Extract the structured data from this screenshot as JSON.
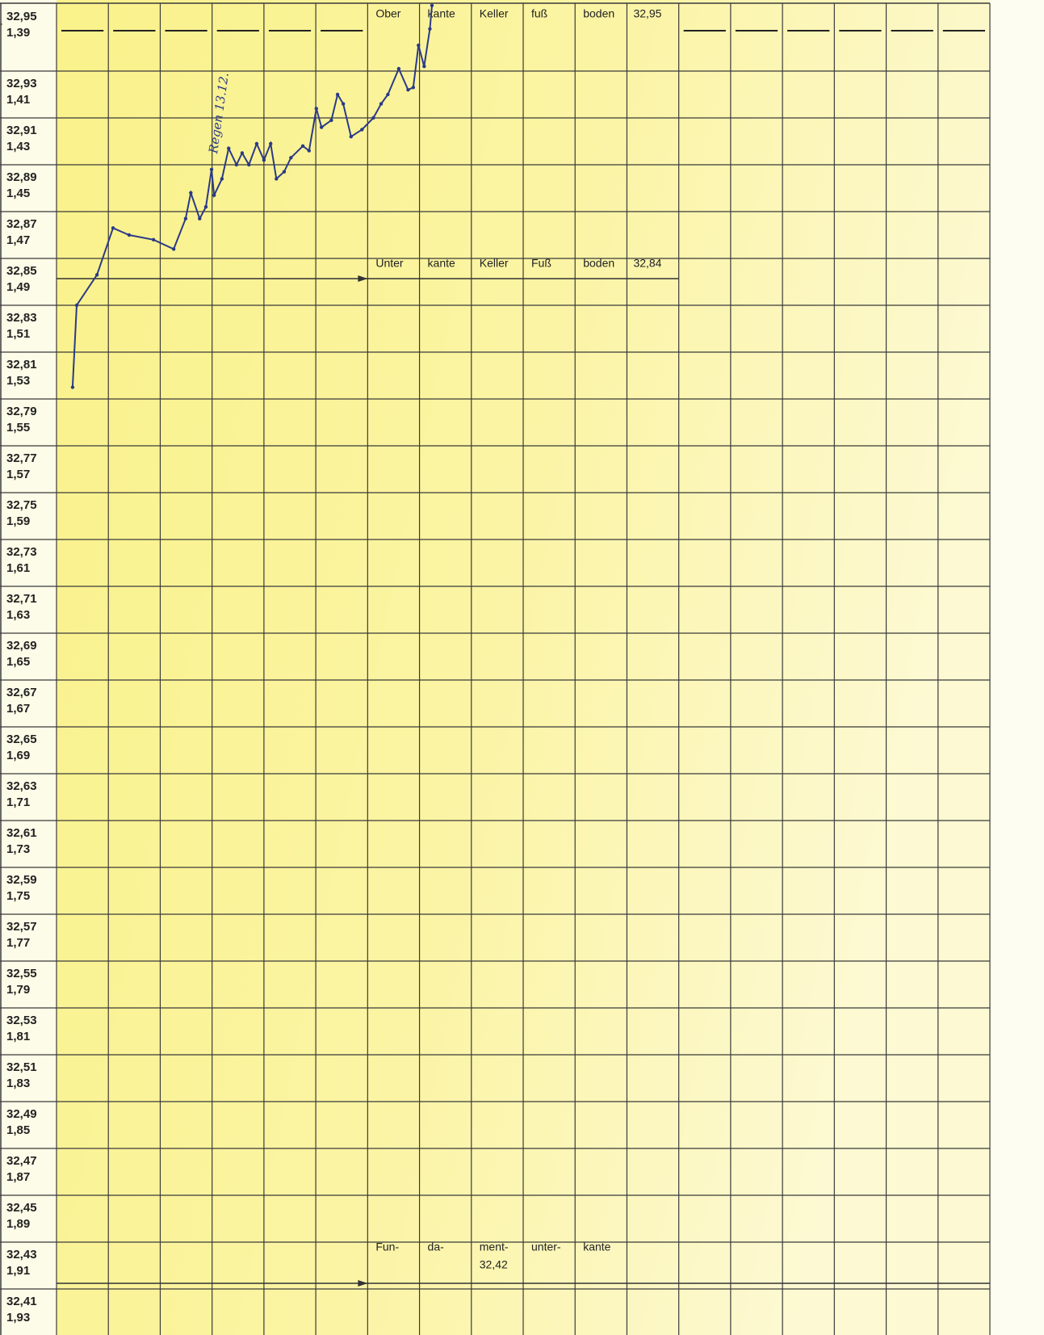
{
  "chart_data": {
    "type": "line",
    "color": "#2b3a86",
    "x": [
      0.31,
      0.39,
      0.78,
      1.09,
      1.4,
      1.87,
      2.26,
      2.49,
      2.59,
      2.76,
      2.88,
      2.99,
      3.04,
      3.19,
      3.32,
      3.47,
      3.58,
      3.71,
      3.86,
      4.0,
      4.13,
      4.24,
      4.39,
      4.52,
      4.75,
      4.87,
      5.01,
      5.11,
      5.3,
      5.42,
      5.53,
      5.68,
      5.89,
      6.11,
      6.26,
      6.39,
      6.6,
      6.78,
      6.88,
      6.98,
      7.09,
      7.2,
      7.24
    ],
    "values": [
      32.795,
      32.83,
      32.843,
      32.863,
      32.86,
      32.858,
      32.854,
      32.867,
      32.878,
      32.867,
      32.872,
      32.888,
      32.877,
      32.884,
      32.897,
      32.89,
      32.895,
      32.89,
      32.899,
      32.892,
      32.899,
      32.884,
      32.887,
      32.893,
      32.898,
      32.896,
      32.914,
      32.906,
      32.909,
      32.92,
      32.916,
      32.902,
      32.905,
      32.91,
      32.916,
      32.92,
      32.931,
      32.922,
      32.923,
      32.941,
      32.932,
      32.948,
      32.958
    ],
    "xlim": [
      0,
      18
    ],
    "ylim": [
      32.39,
      32.96
    ],
    "yticks": [
      {
        "value": 32.95,
        "label": "32,95"
      },
      {
        "value": 32.93,
        "label": "32,93"
      },
      {
        "value": 32.91,
        "label": "32,91"
      },
      {
        "value": 32.89,
        "label": "32,89"
      },
      {
        "value": 32.87,
        "label": "32,87"
      },
      {
        "value": 32.85,
        "label": "32,85"
      },
      {
        "value": 32.83,
        "label": "32,83"
      },
      {
        "value": 32.81,
        "label": "32,81"
      },
      {
        "value": 32.79,
        "label": "32,79"
      },
      {
        "value": 32.77,
        "label": "32,77"
      },
      {
        "value": 32.75,
        "label": "32,75"
      },
      {
        "value": 32.73,
        "label": "32,73"
      },
      {
        "value": 32.71,
        "label": "32,71"
      },
      {
        "value": 32.69,
        "label": "32,69"
      },
      {
        "value": 32.67,
        "label": "32,67"
      },
      {
        "value": 32.65,
        "label": "32,65"
      },
      {
        "value": 32.63,
        "label": "32,63"
      },
      {
        "value": 32.61,
        "label": "32,61"
      },
      {
        "value": 32.59,
        "label": "32,59"
      },
      {
        "value": 32.57,
        "label": "32,57"
      },
      {
        "value": 32.55,
        "label": "32,55"
      },
      {
        "value": 32.53,
        "label": "32,53"
      },
      {
        "value": 32.51,
        "label": "32,51"
      },
      {
        "value": 32.49,
        "label": "32,49"
      },
      {
        "value": 32.47,
        "label": "32,47"
      },
      {
        "value": 32.45,
        "label": "32,45"
      },
      {
        "value": 32.43,
        "label": "32,43"
      },
      {
        "value": 32.41,
        "label": "32,41"
      }
    ],
    "y2lim": [
      1.95,
      1.38
    ],
    "y2ticks": [
      {
        "value": 1.39,
        "label": "1,39"
      },
      {
        "value": 1.41,
        "label": "1,41"
      },
      {
        "value": 1.43,
        "label": "1,43"
      },
      {
        "value": 1.45,
        "label": "1,45"
      },
      {
        "value": 1.47,
        "label": "1,47"
      },
      {
        "value": 1.49,
        "label": "1,49"
      },
      {
        "value": 1.51,
        "label": "1,51"
      },
      {
        "value": 1.53,
        "label": "1,53"
      },
      {
        "value": 1.55,
        "label": "1,55"
      },
      {
        "value": 1.57,
        "label": "1,57"
      },
      {
        "value": 1.59,
        "label": "1,59"
      },
      {
        "value": 1.61,
        "label": "1,61"
      },
      {
        "value": 1.63,
        "label": "1,63"
      },
      {
        "value": 1.65,
        "label": "1,65"
      },
      {
        "value": 1.67,
        "label": "1,67"
      },
      {
        "value": 1.69,
        "label": "1,69"
      },
      {
        "value": 1.71,
        "label": "1,71"
      },
      {
        "value": 1.73,
        "label": "1,73"
      },
      {
        "value": 1.75,
        "label": "1,75"
      },
      {
        "value": 1.77,
        "label": "1,77"
      },
      {
        "value": 1.79,
        "label": "1,79"
      },
      {
        "value": 1.81,
        "label": "1,81"
      },
      {
        "value": 1.83,
        "label": "1,83"
      },
      {
        "value": 1.85,
        "label": "1,85"
      },
      {
        "value": 1.87,
        "label": "1,87"
      },
      {
        "value": 1.89,
        "label": "1,89"
      },
      {
        "value": 1.91,
        "label": "1,91"
      },
      {
        "value": 1.93,
        "label": "1,93"
      }
    ],
    "reference_lines": [
      {
        "value": 32.95,
        "label": "32,95",
        "words": [
          "Ober",
          "kante",
          "Keller",
          "fuß",
          "boden"
        ]
      },
      {
        "value": 32.84,
        "label": "32,84",
        "words": [
          "Unter",
          "kante",
          "Keller",
          "Fuß",
          "boden"
        ]
      },
      {
        "value": 32.42,
        "label": "32,42",
        "words": [
          "Fun-",
          "da-",
          "ment-",
          "unter-",
          "kante"
        ]
      }
    ],
    "annotation": "Regen 13.12."
  }
}
